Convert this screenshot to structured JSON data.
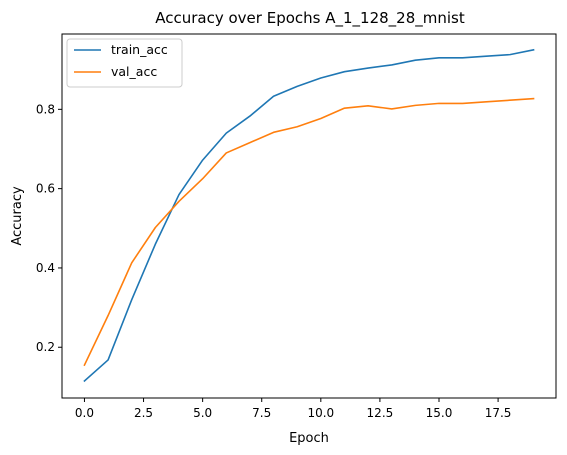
{
  "chart_data": {
    "type": "line",
    "title": "Accuracy over Epochs A_1_128_28_mnist",
    "xlabel": "Epoch",
    "ylabel": "Accuracy",
    "xlim": [
      -0.95,
      19.95
    ],
    "ylim": [
      0.072,
      0.99
    ],
    "xticks": [
      0.0,
      2.5,
      5.0,
      7.5,
      10.0,
      12.5,
      15.0,
      17.5
    ],
    "xtick_labels": [
      "0.0",
      "2.5",
      "5.0",
      "7.5",
      "10.0",
      "12.5",
      "15.0",
      "17.5"
    ],
    "yticks": [
      0.2,
      0.4,
      0.6,
      0.8
    ],
    "ytick_labels": [
      "0.2",
      "0.4",
      "0.6",
      "0.8"
    ],
    "grid": false,
    "legend_position": "top-left",
    "x": [
      0,
      1,
      2,
      3,
      4,
      5,
      6,
      7,
      8,
      9,
      10,
      11,
      12,
      13,
      14,
      15,
      16,
      17,
      18,
      19
    ],
    "series": [
      {
        "name": "train_acc",
        "color": "#1f77b4",
        "values": [
          0.115,
          0.168,
          0.32,
          0.46,
          0.585,
          0.672,
          0.74,
          0.783,
          0.833,
          0.858,
          0.879,
          0.895,
          0.904,
          0.912,
          0.924,
          0.93,
          0.93,
          0.934,
          0.938,
          0.95
        ]
      },
      {
        "name": "val_acc",
        "color": "#ff7f0e",
        "values": [
          0.155,
          0.28,
          0.413,
          0.502,
          0.568,
          0.625,
          0.69,
          0.716,
          0.742,
          0.756,
          0.777,
          0.803,
          0.809,
          0.801,
          0.81,
          0.815,
          0.815,
          0.819,
          0.823,
          0.827
        ]
      }
    ]
  }
}
